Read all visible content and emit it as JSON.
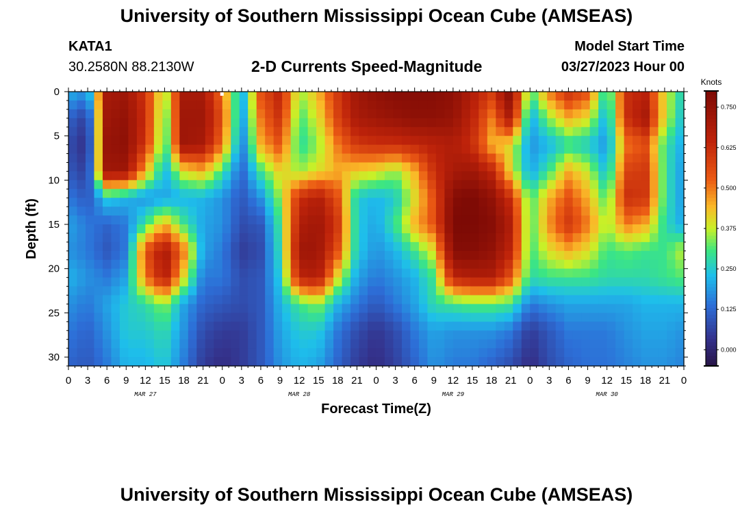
{
  "header": {
    "title": "University of Southern Mississippi Ocean Cube (AMSEAS)",
    "station": "KATA1",
    "coords": "30.2580N  88.2130W",
    "subtitle": "2-D Currents Speed-Magnitude",
    "model_label": "Model Start Time",
    "model_time": "03/27/2023 Hour 00"
  },
  "footer": {
    "title": "University of Southern Mississippi Ocean Cube (AMSEAS)"
  },
  "chart_data": {
    "type": "heatmap",
    "title": "2-D Currents Speed-Magnitude",
    "xlabel": "Forecast Time(Z)",
    "ylabel": "Depth (ft)",
    "x_unit": "hours since 03/27/2023 00Z",
    "xlim": [
      0,
      96
    ],
    "ylim": [
      0,
      31
    ],
    "x_tick_labels": [
      "0",
      "3",
      "6",
      "9",
      "12",
      "15",
      "18",
      "21",
      "0",
      "3",
      "6",
      "9",
      "12",
      "15",
      "18",
      "21",
      "0",
      "3",
      "6",
      "9",
      "12",
      "15",
      "18",
      "21",
      "0",
      "3",
      "6",
      "9",
      "12",
      "15",
      "18",
      "21",
      "0"
    ],
    "y_tick_values": [
      0,
      5,
      10,
      15,
      20,
      25,
      30
    ],
    "y_tick_labels": [
      "0",
      "5",
      "10",
      "15",
      "20",
      "25",
      "30"
    ],
    "date_labels": [
      {
        "text": "MAR 27",
        "hour": 12
      },
      {
        "text": "MAR 28",
        "hour": 36
      },
      {
        "text": "MAR 29",
        "hour": 60
      },
      {
        "text": "MAR 30",
        "hour": 84
      }
    ],
    "colorbar": {
      "unit": "Knots",
      "min": -0.05,
      "max": 0.8,
      "tick_values": [
        0.75,
        0.625,
        0.5,
        0.375,
        0.25,
        0.125,
        0.0
      ],
      "tick_labels": [
        "0.750",
        "0.625",
        "0.500",
        "0.375",
        "0.250",
        "0.125",
        "0.000"
      ]
    },
    "speed_field_knots": {
      "depths_ft": [
        0,
        3,
        6,
        9,
        12,
        15,
        18,
        21,
        24,
        27,
        31
      ],
      "times_h": [
        0,
        3,
        6,
        9,
        12,
        15,
        18,
        21,
        24,
        27,
        30,
        33,
        36,
        39,
        42,
        45,
        48,
        51,
        54,
        57,
        60,
        63,
        66,
        69,
        72,
        75,
        78,
        81,
        84,
        87,
        90,
        93,
        96
      ],
      "rows": [
        [
          0.22,
          0.18,
          0.7,
          0.72,
          0.6,
          0.35,
          0.7,
          0.7,
          0.5,
          0.2,
          0.55,
          0.65,
          0.35,
          0.45,
          0.6,
          0.72,
          0.76,
          0.78,
          0.78,
          0.78,
          0.76,
          0.68,
          0.6,
          0.78,
          0.3,
          0.5,
          0.62,
          0.55,
          0.25,
          0.62,
          0.65,
          0.4,
          0.25
        ],
        [
          0.12,
          0.05,
          0.72,
          0.75,
          0.62,
          0.3,
          0.72,
          0.72,
          0.55,
          0.18,
          0.5,
          0.62,
          0.3,
          0.4,
          0.58,
          0.7,
          0.72,
          0.74,
          0.76,
          0.76,
          0.74,
          0.65,
          0.5,
          0.7,
          0.2,
          0.35,
          0.45,
          0.4,
          0.2,
          0.62,
          0.7,
          0.4,
          0.22
        ],
        [
          0.08,
          0.02,
          0.74,
          0.76,
          0.6,
          0.28,
          0.72,
          0.7,
          0.5,
          0.15,
          0.45,
          0.55,
          0.28,
          0.35,
          0.5,
          0.6,
          0.62,
          0.62,
          0.64,
          0.66,
          0.68,
          0.62,
          0.45,
          0.4,
          0.18,
          0.22,
          0.28,
          0.25,
          0.18,
          0.5,
          0.55,
          0.3,
          0.2
        ],
        [
          0.1,
          0.05,
          0.72,
          0.72,
          0.45,
          0.22,
          0.4,
          0.45,
          0.3,
          0.12,
          0.3,
          0.42,
          0.35,
          0.4,
          0.45,
          0.42,
          0.4,
          0.35,
          0.45,
          0.62,
          0.7,
          0.72,
          0.65,
          0.4,
          0.2,
          0.3,
          0.45,
          0.38,
          0.22,
          0.58,
          0.6,
          0.3,
          0.18
        ],
        [
          0.15,
          0.1,
          0.25,
          0.22,
          0.18,
          0.2,
          0.22,
          0.22,
          0.18,
          0.1,
          0.18,
          0.35,
          0.62,
          0.68,
          0.55,
          0.25,
          0.22,
          0.25,
          0.4,
          0.55,
          0.78,
          0.8,
          0.75,
          0.62,
          0.3,
          0.45,
          0.55,
          0.45,
          0.3,
          0.62,
          0.6,
          0.3,
          0.18
        ],
        [
          0.2,
          0.15,
          0.12,
          0.15,
          0.3,
          0.45,
          0.3,
          0.2,
          0.18,
          0.08,
          0.1,
          0.3,
          0.68,
          0.72,
          0.6,
          0.25,
          0.2,
          0.3,
          0.45,
          0.55,
          0.8,
          0.8,
          0.78,
          0.68,
          0.3,
          0.48,
          0.6,
          0.5,
          0.35,
          0.5,
          0.45,
          0.28,
          0.2
        ],
        [
          0.18,
          0.15,
          0.1,
          0.15,
          0.55,
          0.7,
          0.5,
          0.2,
          0.15,
          0.05,
          0.08,
          0.28,
          0.72,
          0.72,
          0.55,
          0.25,
          0.18,
          0.22,
          0.3,
          0.4,
          0.78,
          0.78,
          0.75,
          0.65,
          0.3,
          0.4,
          0.45,
          0.4,
          0.3,
          0.32,
          0.3,
          0.3,
          0.38
        ],
        [
          0.22,
          0.18,
          0.15,
          0.2,
          0.5,
          0.68,
          0.4,
          0.15,
          0.15,
          0.08,
          0.1,
          0.25,
          0.65,
          0.68,
          0.4,
          0.2,
          0.15,
          0.18,
          0.22,
          0.3,
          0.65,
          0.68,
          0.68,
          0.55,
          0.28,
          0.3,
          0.3,
          0.3,
          0.28,
          0.28,
          0.28,
          0.3,
          0.32
        ],
        [
          0.18,
          0.15,
          0.2,
          0.25,
          0.28,
          0.35,
          0.2,
          0.12,
          0.1,
          0.08,
          0.1,
          0.22,
          0.3,
          0.35,
          0.22,
          0.15,
          0.1,
          0.15,
          0.2,
          0.28,
          0.3,
          0.32,
          0.32,
          0.3,
          0.15,
          0.18,
          0.2,
          0.2,
          0.2,
          0.2,
          0.22,
          0.22,
          0.22
        ],
        [
          0.15,
          0.12,
          0.18,
          0.25,
          0.25,
          0.28,
          0.18,
          0.08,
          0.05,
          0.05,
          0.1,
          0.2,
          0.25,
          0.25,
          0.15,
          0.08,
          0.04,
          0.08,
          0.15,
          0.2,
          0.18,
          0.18,
          0.18,
          0.15,
          0.05,
          0.1,
          0.15,
          0.15,
          0.15,
          0.18,
          0.2,
          0.2,
          0.18
        ],
        [
          0.12,
          0.1,
          0.15,
          0.22,
          0.22,
          0.25,
          0.15,
          0.05,
          0.02,
          0.05,
          0.1,
          0.18,
          0.22,
          0.2,
          0.12,
          0.05,
          0.02,
          0.06,
          0.12,
          0.18,
          0.15,
          0.15,
          0.12,
          0.08,
          0.02,
          0.08,
          0.12,
          0.14,
          0.14,
          0.16,
          0.18,
          0.18,
          0.16
        ]
      ]
    }
  }
}
